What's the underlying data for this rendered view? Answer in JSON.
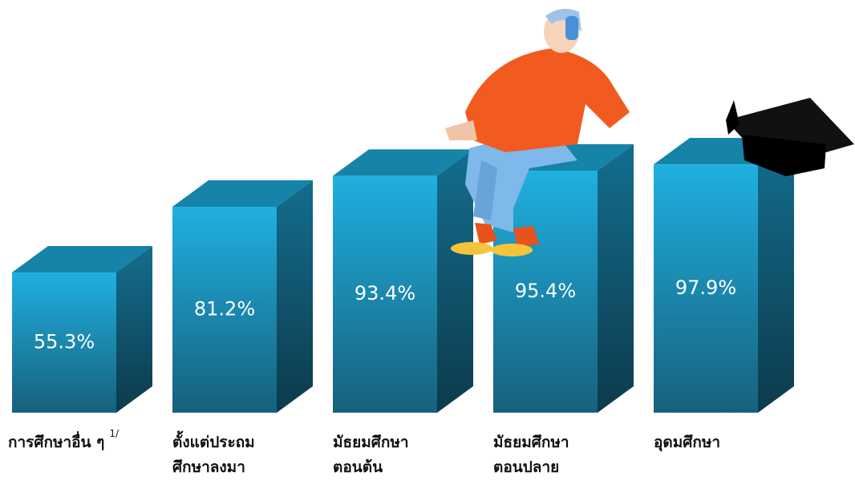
{
  "chart_data": {
    "type": "bar3d",
    "categories": [
      "การศึกษาอื่น ๆ",
      "ตั้งแต่ประถม\nศึกษาลงมา",
      "มัธยมศึกษา\nตอนต้น",
      "มัธยมศึกษา\nตอนปลาย",
      "อุดมศึกษา"
    ],
    "category_notes": [
      "1/",
      null,
      null,
      null,
      null
    ],
    "values": [
      55.3,
      81.2,
      93.4,
      95.4,
      97.9
    ],
    "value_labels": [
      "55.3%",
      "81.2%",
      "93.4%",
      "95.4%",
      "97.9%"
    ],
    "color": "#1fa8d8"
  }
}
